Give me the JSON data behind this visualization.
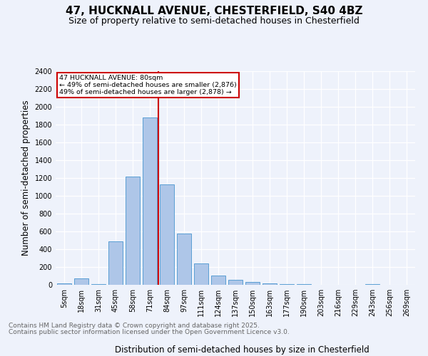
{
  "title_line1": "47, HUCKNALL AVENUE, CHESTERFIELD, S40 4BZ",
  "title_line2": "Size of property relative to semi-detached houses in Chesterfield",
  "xlabel": "Distribution of semi-detached houses by size in Chesterfield",
  "ylabel": "Number of semi-detached properties",
  "categories": [
    "5sqm",
    "18sqm",
    "31sqm",
    "45sqm",
    "58sqm",
    "71sqm",
    "84sqm",
    "97sqm",
    "111sqm",
    "124sqm",
    "137sqm",
    "150sqm",
    "163sqm",
    "177sqm",
    "190sqm",
    "203sqm",
    "216sqm",
    "229sqm",
    "243sqm",
    "256sqm",
    "269sqm"
  ],
  "values": [
    15,
    75,
    10,
    490,
    1220,
    1880,
    1130,
    580,
    240,
    105,
    58,
    35,
    20,
    12,
    5,
    0,
    0,
    0,
    5,
    0,
    0
  ],
  "bar_color": "#aec6e8",
  "bar_edge_color": "#5a9fd4",
  "vline_color": "#cc0000",
  "annotation_box_text": "47 HUCKNALL AVENUE: 80sqm\n← 49% of semi-detached houses are smaller (2,876)\n49% of semi-detached houses are larger (2,878) →",
  "annotation_box_color": "#cc0000",
  "annotation_box_bg": "#ffffff",
  "ylim": [
    0,
    2400
  ],
  "yticks": [
    0,
    200,
    400,
    600,
    800,
    1000,
    1200,
    1400,
    1600,
    1800,
    2000,
    2200,
    2400
  ],
  "bg_color": "#eef2fb",
  "plot_bg_color": "#eef2fb",
  "footer_line1": "Contains HM Land Registry data © Crown copyright and database right 2025.",
  "footer_line2": "Contains public sector information licensed under the Open Government Licence v3.0.",
  "title_fontsize": 11,
  "subtitle_fontsize": 9,
  "axis_label_fontsize": 8.5,
  "tick_fontsize": 7,
  "footer_fontsize": 6.5
}
